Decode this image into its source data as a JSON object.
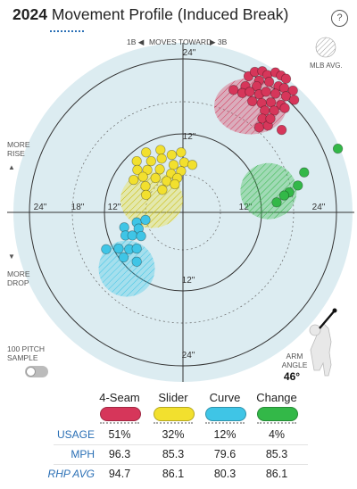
{
  "header": {
    "title_year": "2024",
    "title_rest": "Movement Profile (Induced Break)",
    "help_label": "?"
  },
  "labels": {
    "moves_toward_left": "1B ◀",
    "moves_toward_mid": "MOVES TOWARD",
    "moves_toward_right": "▶ 3B",
    "mlb_avg": "MLB AVG.",
    "more_rise_1": "MORE",
    "more_rise_2": "RISE",
    "more_drop_1": "MORE",
    "more_drop_2": "DROP",
    "up_arrow": "▲",
    "down_arrow": "▼",
    "sample_1": "100 PITCH",
    "sample_2": "SAMPLE",
    "arm_angle_1": "ARM",
    "arm_angle_2": "ANGLE",
    "arm_angle_value": "46°"
  },
  "colors": {
    "4-Seam": "#d6365a",
    "Slider": "#f2e02e",
    "Curve": "#3fc5e6",
    "Change": "#33b848",
    "plot_bg": "#dcecf1"
  },
  "chart_data": {
    "type": "scatter",
    "polar_rings_inches": [
      12,
      24
    ],
    "ring_labels": {
      "top": [
        "24\"",
        "12\""
      ],
      "bottom": [
        "12\"",
        "24\""
      ],
      "left": [
        "24\"",
        "18\"",
        "12\""
      ],
      "right": [
        "12\"",
        "24\""
      ]
    },
    "xlim": [
      -28,
      28
    ],
    "ylim": [
      -28,
      28
    ],
    "arm_angle_deg": 46,
    "series": [
      {
        "name": "4-Seam",
        "points": [
          [
            10.5,
            21.8
          ],
          [
            11.5,
            22.5
          ],
          [
            12.7,
            22.6
          ],
          [
            13.5,
            22
          ],
          [
            14.8,
            22.4
          ],
          [
            15.7,
            21.9
          ],
          [
            16.5,
            21.4
          ],
          [
            12.2,
            21.1
          ],
          [
            10,
            20.2
          ],
          [
            11.8,
            20.2
          ],
          [
            13.8,
            20.9
          ],
          [
            15.3,
            20.2
          ],
          [
            16.2,
            19.9
          ],
          [
            17.6,
            19.5
          ],
          [
            8.1,
            19.6
          ],
          [
            9.5,
            19.1
          ],
          [
            10.7,
            19.3
          ],
          [
            12.2,
            18.9
          ],
          [
            13.3,
            19.3
          ],
          [
            14.8,
            19
          ],
          [
            16.5,
            18.6
          ],
          [
            11.1,
            17.8
          ],
          [
            12.6,
            17.5
          ],
          [
            14.1,
            17.6
          ],
          [
            15.7,
            17.2
          ],
          [
            13.1,
            16.3
          ],
          [
            14.6,
            16.3
          ],
          [
            16.3,
            16.7
          ],
          [
            12.7,
            15
          ],
          [
            12.2,
            13.6
          ],
          [
            13.6,
            13.9
          ],
          [
            15.8,
            13.2
          ],
          [
            17.8,
            18
          ],
          [
            14,
            15
          ]
        ],
        "avg": [
          10.8,
          17
        ],
        "avg_radius": [
          5.8,
          4.5
        ]
      },
      {
        "name": "Slider",
        "points": [
          [
            -5.9,
            9.6
          ],
          [
            -3.6,
            10
          ],
          [
            -1.8,
            9.2
          ],
          [
            -0.3,
            9.6
          ],
          [
            -7.4,
            8.2
          ],
          [
            -5.1,
            8.2
          ],
          [
            -3.4,
            8.6
          ],
          [
            -1.5,
            7.6
          ],
          [
            0.2,
            8
          ],
          [
            -7.3,
            6.8
          ],
          [
            -5.7,
            6.8
          ],
          [
            -3.7,
            6.9
          ],
          [
            -1.9,
            6.2
          ],
          [
            -0.3,
            6.6
          ],
          [
            -6.4,
            5.7
          ],
          [
            -4.4,
            5.5
          ],
          [
            -2.6,
            5
          ],
          [
            -0.9,
            5.5
          ],
          [
            -7.9,
            5.2
          ],
          [
            -6,
            4.2
          ],
          [
            -3.3,
            3.6
          ],
          [
            -5.9,
            2.8
          ],
          [
            -1.3,
            4.5
          ],
          [
            1.5,
            7.6
          ]
        ],
        "avg": [
          -5,
          2
        ],
        "avg_radius": [
          5,
          4.5
        ]
      },
      {
        "name": "Curve",
        "points": [
          [
            -7.4,
            -1.6
          ],
          [
            -6,
            -1.2
          ],
          [
            -9.4,
            -2.4
          ],
          [
            -7.1,
            -2.6
          ],
          [
            -9.2,
            -3.7
          ],
          [
            -8.1,
            -3.7
          ],
          [
            -6.7,
            -3.8
          ],
          [
            -10.3,
            -5.8
          ],
          [
            -8.6,
            -5.9
          ],
          [
            -7.4,
            -5.8
          ],
          [
            -12.3,
            -5.9
          ],
          [
            -9.5,
            -7.2
          ],
          [
            -7.4,
            -7.9
          ]
        ],
        "avg": [
          -9,
          -9
        ],
        "avg_radius": [
          4.5,
          4.5
        ]
      },
      {
        "name": "Change",
        "points": [
          [
            18.4,
            4.3
          ],
          [
            17,
            3.2
          ],
          [
            19.4,
            6.4
          ],
          [
            16.2,
            2.7
          ],
          [
            15,
            1.6
          ],
          [
            24.8,
            10.2
          ]
        ],
        "avg": [
          13.7,
          3.4
        ],
        "avg_radius": [
          4.5,
          4.5
        ]
      }
    ],
    "table": {
      "columns": [
        "4-Seam",
        "Slider",
        "Curve",
        "Change"
      ],
      "rows": [
        {
          "label": "USAGE",
          "values": [
            "51%",
            "32%",
            "12%",
            "4%"
          ]
        },
        {
          "label": "MPH",
          "values": [
            "96.3",
            "85.3",
            "79.6",
            "85.3"
          ]
        },
        {
          "label": "RHP AVG",
          "values": [
            "94.7",
            "86.1",
            "80.3",
            "86.1"
          ]
        }
      ]
    }
  }
}
